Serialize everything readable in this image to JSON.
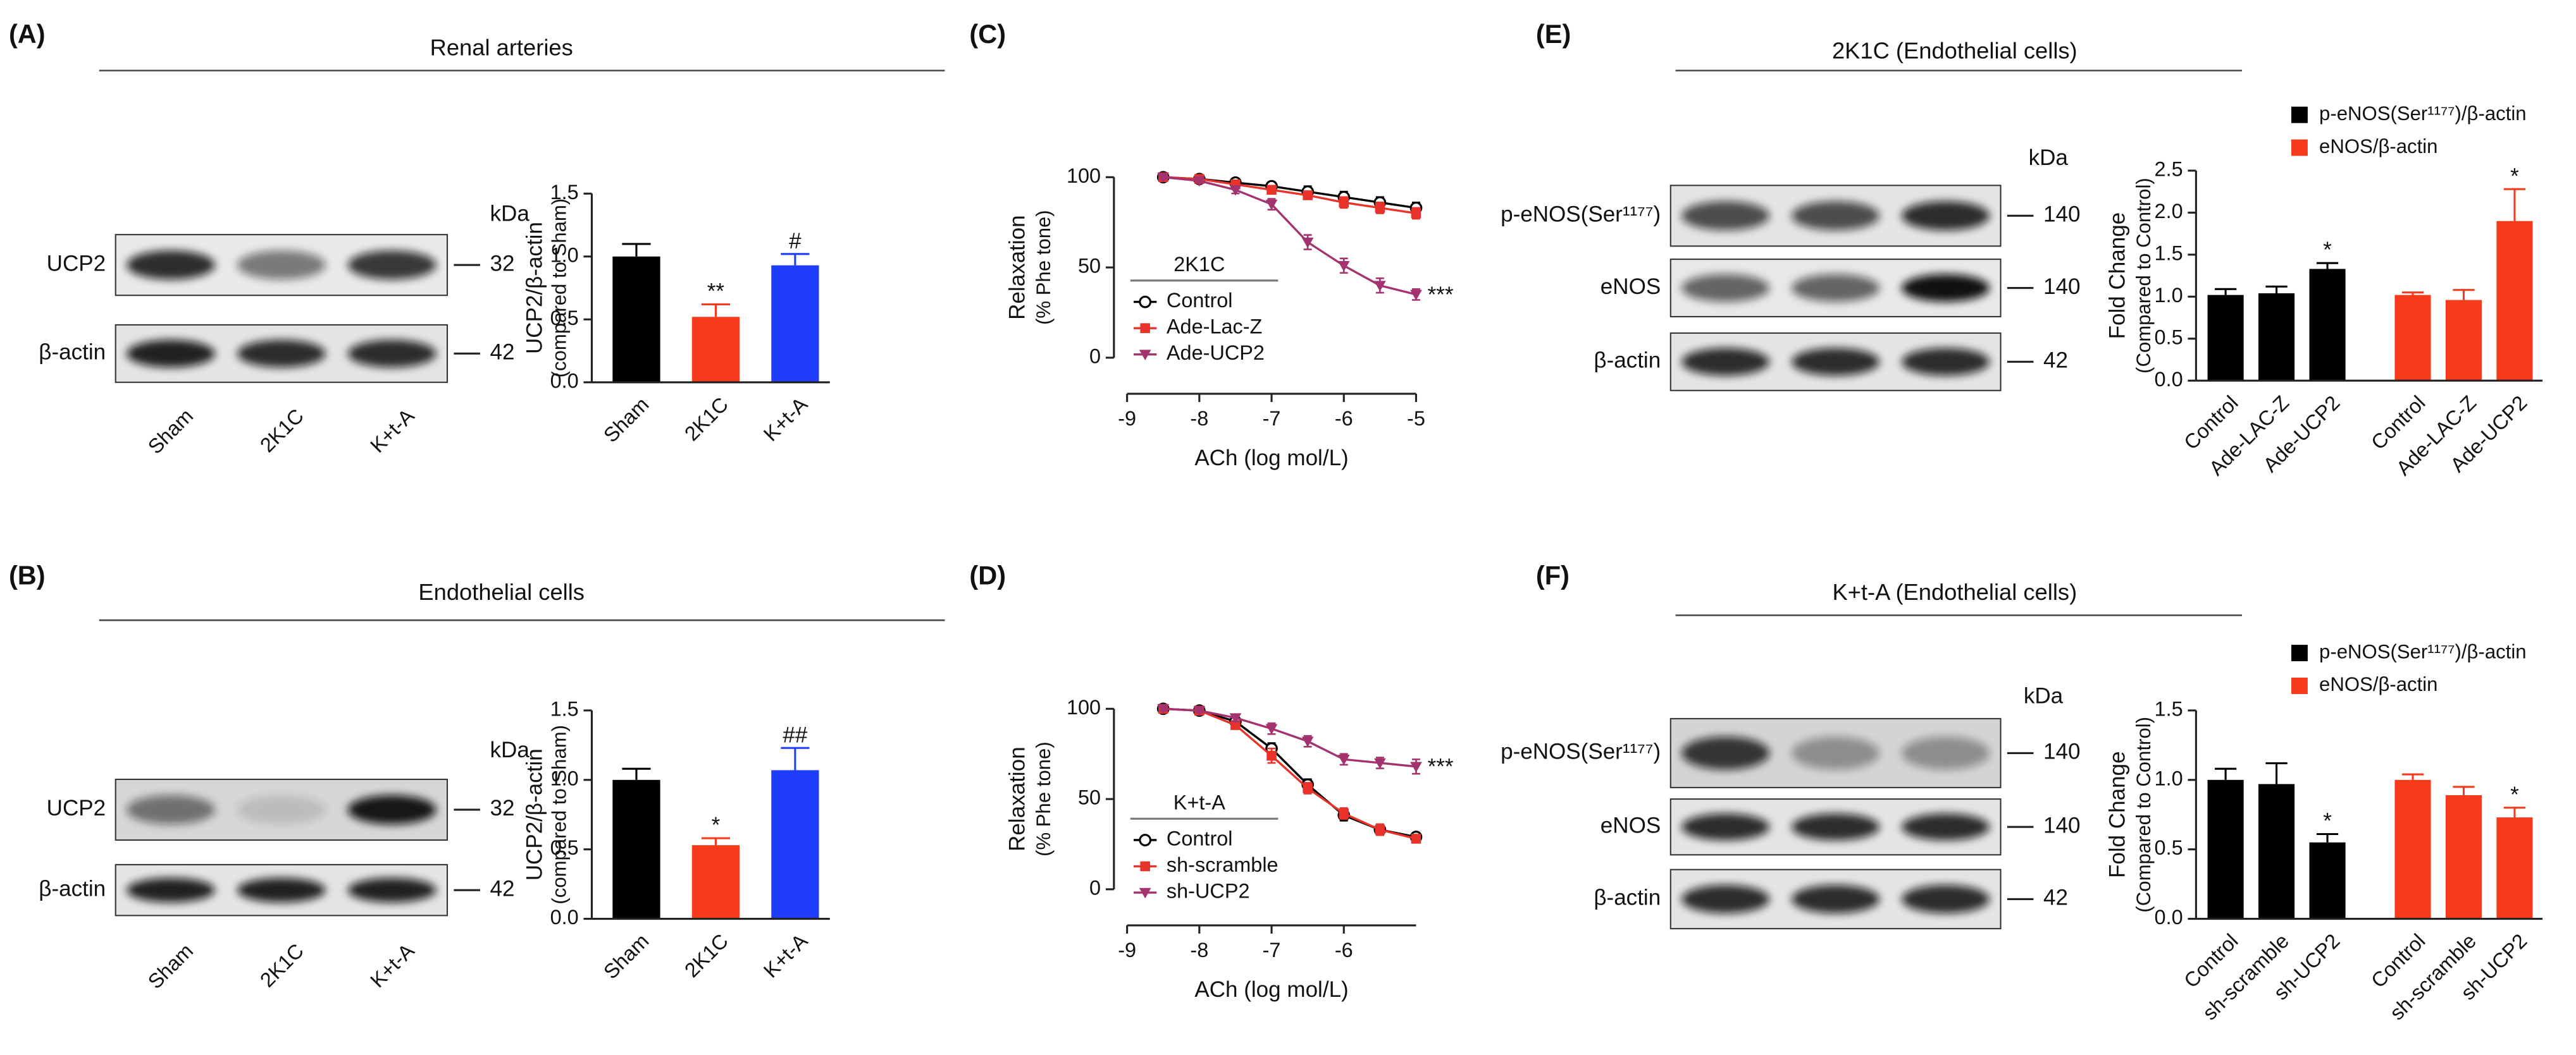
{
  "panels": [
    {
      "label": "(A)",
      "title": "Renal arteries",
      "blot": {
        "unit": "kDa",
        "rows": [
          {
            "name": "UCP2",
            "kda": 32
          },
          {
            "name": "β-actin",
            "kda": 42
          }
        ],
        "lanes": [
          "Sham",
          "2K1C",
          "K+t-A"
        ]
      }
    },
    {
      "label": "(B)",
      "title": "Endothelial cells",
      "blot": {
        "unit": "kDa",
        "rows": [
          {
            "name": "UCP2",
            "kda": 32
          },
          {
            "name": "β-actin",
            "kda": 42
          }
        ],
        "lanes": [
          "Sham",
          "2K1C",
          "K+t-A"
        ]
      }
    },
    {
      "label": "(C)"
    },
    {
      "label": "(D)"
    },
    {
      "label": "(E)",
      "title": "2K1C (Endothelial cells)",
      "blot": {
        "unit": "kDa",
        "rows": [
          {
            "name": "p-eNOS(Ser¹¹⁷⁷)",
            "kda": 140
          },
          {
            "name": "eNOS",
            "kda": 140
          },
          {
            "name": "β-actin",
            "kda": 42
          }
        ]
      }
    },
    {
      "label": "(F)",
      "title": "K+t-A (Endothelial cells)",
      "blot": {
        "unit": "kDa",
        "rows": [
          {
            "name": "p-eNOS(Ser¹¹⁷⁷)",
            "kda": 140
          },
          {
            "name": "eNOS",
            "kda": 140
          },
          {
            "name": "β-actin",
            "kda": 42
          }
        ]
      }
    }
  ],
  "chart_data": [
    {
      "type": "bar",
      "categories": [
        "Sham",
        "2K1C",
        "K+t-A"
      ],
      "values": [
        1.0,
        0.52,
        0.93
      ],
      "errors": [
        0.1,
        0.1,
        0.09
      ],
      "colors": [
        "#000000",
        "#f53b1b",
        "#1f3dfa"
      ],
      "significance": [
        null,
        "**",
        "#"
      ],
      "ylabel": "UCP2/β-actin",
      "ylabel_sub": "(compared to Sham)",
      "ylim": [
        0,
        1.5
      ],
      "yticks": [
        {
          "value": 0,
          "label": "0.0"
        },
        0.5,
        {
          "value": 1,
          "label": "1.0"
        },
        1.5
      ]
    },
    {
      "type": "bar",
      "categories": [
        "Sham",
        "2K1C",
        "K+t-A"
      ],
      "values": [
        1.0,
        0.53,
        1.07
      ],
      "errors": [
        0.08,
        0.05,
        0.16
      ],
      "colors": [
        "#000000",
        "#f53b1b",
        "#1f3dfa"
      ],
      "significance": [
        null,
        "*",
        "##"
      ],
      "ylabel": "UCP2/β-actin",
      "ylabel_sub": "(compared to Sham)",
      "ylim": [
        0,
        1.5
      ],
      "yticks": [
        {
          "value": 0,
          "label": "0.0"
        },
        0.5,
        {
          "value": 1,
          "label": "1.0"
        },
        1.5
      ]
    },
    {
      "type": "line",
      "x": [
        -8.5,
        -8,
        -7.5,
        -7,
        -6.5,
        -6,
        -5.5,
        -5
      ],
      "series": [
        {
          "name": "Control",
          "color": "#000000",
          "marker": "circle",
          "values": [
            100,
            99,
            97,
            95,
            92,
            89,
            86,
            83
          ],
          "errors": [
            1,
            1,
            2,
            2,
            3,
            3,
            3,
            3
          ]
        },
        {
          "name": "Ade-Lac-Z",
          "color": "#e8322a",
          "marker": "square",
          "values": [
            100,
            99,
            96,
            93,
            90,
            86,
            83,
            80
          ],
          "errors": [
            1,
            1,
            2,
            2,
            2,
            3,
            3,
            3
          ]
        },
        {
          "name": "Ade-UCP2",
          "color": "#a4326e",
          "marker": "triangle",
          "values": [
            100,
            98,
            93,
            85,
            64,
            51,
            40,
            35
          ],
          "errors": [
            1,
            1,
            2,
            3,
            4,
            4,
            4,
            3
          ]
        }
      ],
      "legend_title": "2K1C",
      "annotation": "***",
      "ylabel": "Relaxation",
      "ylabel_sub": "(% Phe tone)",
      "xlabel": "ACh (log mol/L)",
      "xlim": [
        -9,
        -5
      ],
      "xticks": [
        -9,
        -8,
        -7,
        -6,
        -5
      ],
      "ylim": [
        0,
        100
      ],
      "yticks": [
        0,
        50,
        100
      ]
    },
    {
      "type": "line",
      "x": [
        -8.5,
        -8,
        -7.5,
        -7,
        -6.5,
        -6,
        -5.5,
        -5
      ],
      "series": [
        {
          "name": "Control",
          "color": "#000000",
          "marker": "circle",
          "values": [
            100,
            99,
            93,
            78,
            58,
            41,
            33,
            29
          ],
          "errors": [
            1,
            1,
            2,
            3,
            3,
            3,
            3,
            2
          ]
        },
        {
          "name": "sh-scramble",
          "color": "#e8322a",
          "marker": "square",
          "values": [
            100,
            99,
            91,
            74,
            56,
            42,
            33,
            28
          ],
          "errors": [
            1,
            1,
            2,
            4,
            3,
            3,
            3,
            2
          ]
        },
        {
          "name": "sh-UCP2",
          "color": "#a4326e",
          "marker": "triangle",
          "values": [
            100,
            99,
            95,
            89,
            82,
            72,
            70,
            68
          ],
          "errors": [
            1,
            1,
            2,
            3,
            3,
            3,
            3,
            4
          ]
        }
      ],
      "legend_title": "K+t-A",
      "annotation": "***",
      "ylabel": "Relaxation",
      "ylabel_sub": "(% Phe tone)",
      "xlabel": "ACh (log mol/L)",
      "xlim": [
        -9,
        -5
      ],
      "xticks": [
        -9,
        -8,
        -7,
        -6
      ],
      "ylim": [
        0,
        100
      ],
      "yticks": [
        0,
        50,
        100
      ]
    },
    {
      "type": "grouped_bar",
      "categories": [
        "Control",
        "Ade-LAC-Z",
        "Ade-UCP2"
      ],
      "series": [
        {
          "name": "p-eNOS(Ser¹¹⁷⁷)/β-actin",
          "color": "#000000",
          "values": [
            1.02,
            1.04,
            1.33
          ],
          "errors": [
            0.07,
            0.08,
            0.07
          ],
          "significance": [
            null,
            null,
            "*"
          ]
        },
        {
          "name": "eNOS/β-actin",
          "color": "#f53b1b",
          "values": [
            1.02,
            0.96,
            1.9
          ],
          "errors": [
            0.03,
            0.12,
            0.38
          ],
          "significance": [
            null,
            null,
            "*"
          ]
        }
      ],
      "ylabel": "Fold Change",
      "ylabel_sub": "(Compared to Control)",
      "ylim": [
        0,
        2.5
      ],
      "yticks": [
        {
          "value": 0,
          "label": "0.0"
        },
        0.5,
        {
          "value": 1,
          "label": "1.0"
        },
        1.5,
        {
          "value": 2,
          "label": "2.0"
        },
        2.5
      ]
    },
    {
      "type": "grouped_bar",
      "categories": [
        "Control",
        "sh-scramble",
        "sh-UCP2"
      ],
      "series": [
        {
          "name": "p-eNOS(Ser¹¹⁷⁷)/β-actin",
          "color": "#000000",
          "values": [
            1.0,
            0.97,
            0.55
          ],
          "errors": [
            0.08,
            0.15,
            0.06
          ],
          "significance": [
            null,
            null,
            "*"
          ]
        },
        {
          "name": "eNOS/β-actin",
          "color": "#f53b1b",
          "values": [
            1.0,
            0.89,
            0.73
          ],
          "errors": [
            0.04,
            0.06,
            0.07
          ],
          "significance": [
            null,
            null,
            "*"
          ]
        }
      ],
      "ylabel": "Fold Change",
      "ylabel_sub": "(Compared to Control)",
      "ylim": [
        0,
        1.5
      ],
      "yticks": [
        {
          "value": 0,
          "label": "0.0"
        },
        0.5,
        {
          "value": 1,
          "label": "1.0"
        },
        1.5
      ]
    }
  ]
}
